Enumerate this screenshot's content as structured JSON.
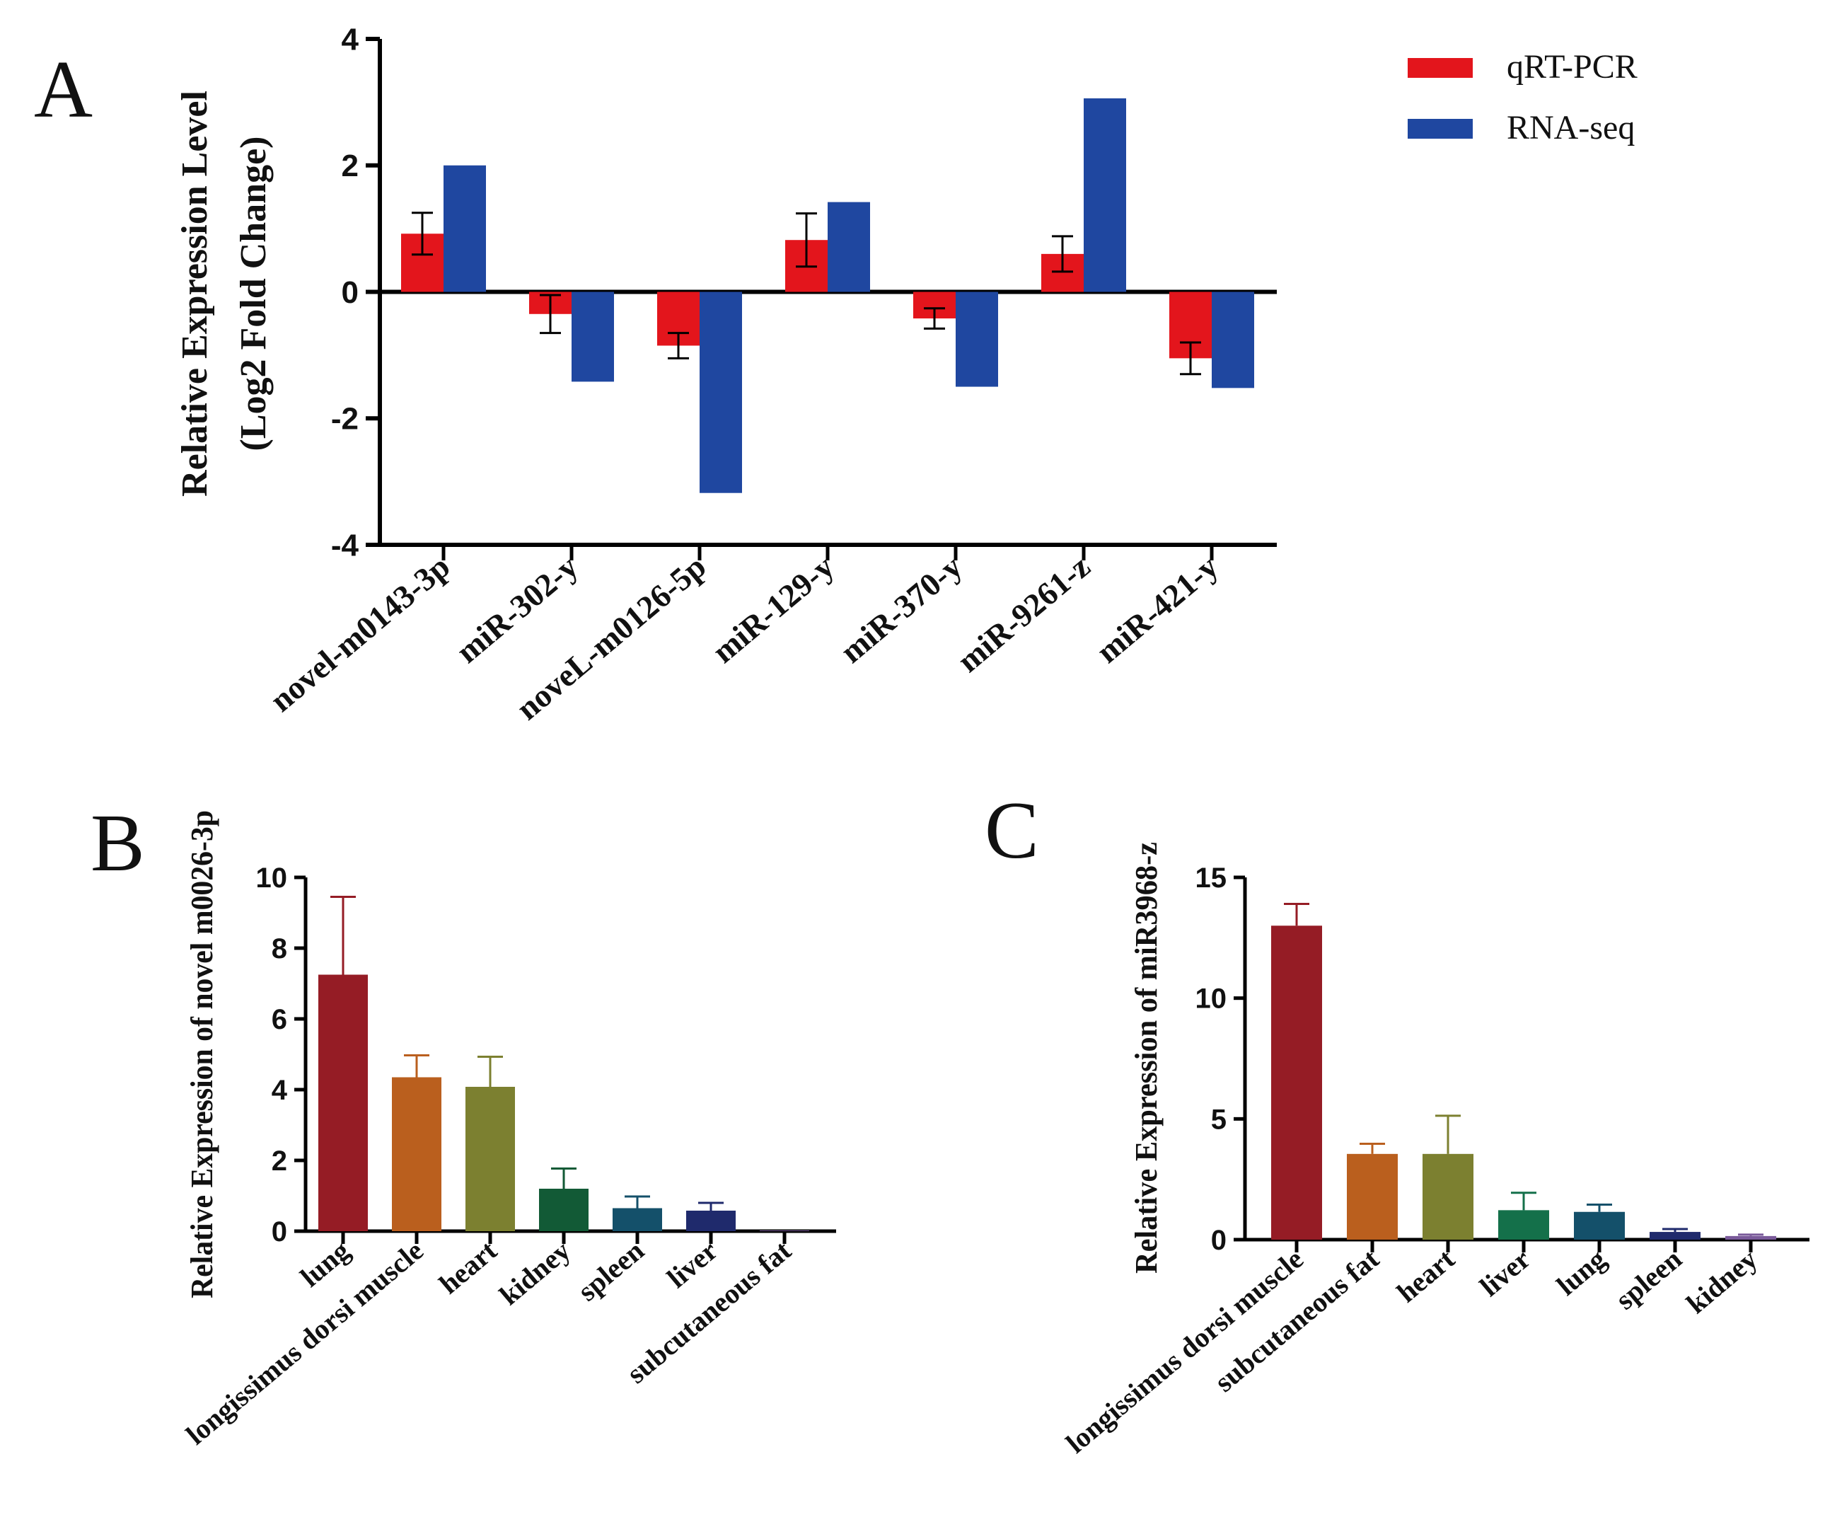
{
  "panel_labels": {
    "a": "A",
    "b": "B",
    "c": "C"
  },
  "colors": {
    "qrt": "#e3151c",
    "rna": "#1f47a0",
    "axis": "#000000",
    "b_bars": [
      "#951c25",
      "#ba5f1e",
      "#7c8030",
      "#125a36",
      "#14506a",
      "#1f2a6c",
      "#7a5a9a"
    ],
    "c_bars": [
      "#951c25",
      "#ba5f1e",
      "#7c8030",
      "#14704a",
      "#14506a",
      "#1f2a6c",
      "#7a5a9a"
    ]
  },
  "chart_data": [
    {
      "id": "A",
      "type": "bar",
      "title": "",
      "xlabel": "",
      "ylabel": [
        "Relative Expression Level",
        "(Log2 Fold Change)"
      ],
      "ylim": [
        -4,
        4
      ],
      "yticks": [
        4,
        2,
        0,
        -2,
        -4
      ],
      "ytick_labels": [
        "4",
        "2",
        "0",
        "-2",
        "-4"
      ],
      "legend_position": "top-right",
      "categories": [
        "novel-m0143-3p",
        "miR-302-y",
        "noveL-m0126-5p",
        "miR-129-y",
        "miR-370-y",
        "miR-9261-z",
        "miR-421-y"
      ],
      "series": [
        {
          "name": "qRT-PCR",
          "values": [
            0.92,
            -0.35,
            -0.85,
            0.82,
            -0.42,
            0.6,
            -1.05
          ],
          "error": [
            0.33,
            0.3,
            0.2,
            0.42,
            0.16,
            0.28,
            0.25
          ]
        },
        {
          "name": "RNA-seq",
          "values": [
            2.0,
            -1.42,
            -3.18,
            1.42,
            -1.5,
            3.06,
            -1.52
          ]
        }
      ]
    },
    {
      "id": "B",
      "type": "bar",
      "title": "",
      "xlabel": "",
      "ylabel": "Relative Expression of novel m0026-3p",
      "ylim": [
        0,
        10
      ],
      "yticks": [
        0,
        2,
        4,
        6,
        8,
        10
      ],
      "ytick_labels": [
        "0",
        "2",
        "4",
        "6",
        "8",
        "10"
      ],
      "categories": [
        "lung",
        "longissimus dorsi muscle",
        "heart",
        "kidney",
        "spleen",
        "liver",
        "subcutaneous fat"
      ],
      "values": [
        7.25,
        4.35,
        4.08,
        1.2,
        0.65,
        0.58,
        0.0
      ],
      "error": [
        2.2,
        0.62,
        0.85,
        0.57,
        0.33,
        0.22,
        0.0
      ]
    },
    {
      "id": "C",
      "type": "bar",
      "title": "",
      "xlabel": "",
      "ylabel": "Relative Expression of miR3968-z",
      "ylim": [
        0,
        15
      ],
      "yticks": [
        0,
        5,
        10,
        15
      ],
      "ytick_labels": [
        "0",
        "5",
        "10",
        "15"
      ],
      "categories": [
        "longissimus dorsi muscle",
        "subcutaneous fat",
        "heart",
        "liver",
        "lung",
        "spleen",
        "kidney"
      ],
      "values": [
        13.0,
        3.55,
        3.55,
        1.22,
        1.15,
        0.32,
        0.15
      ],
      "error": [
        0.9,
        0.42,
        1.58,
        0.72,
        0.3,
        0.12,
        0.06
      ]
    }
  ]
}
